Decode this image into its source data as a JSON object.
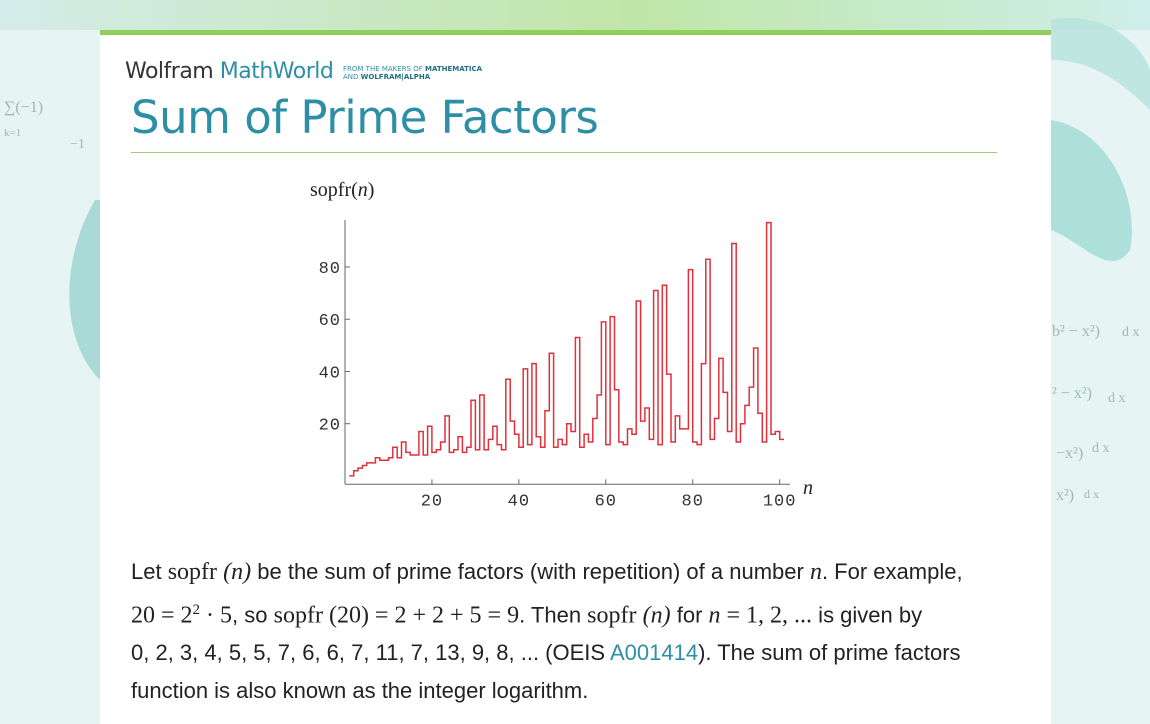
{
  "site": {
    "logo_wolfram": "Wolfram",
    "logo_mathworld": "MathWorld",
    "tagline_line1": "FROM THE MAKERS OF",
    "tagline_brand1": "MATHEMATICA",
    "tagline_line2": "AND",
    "tagline_brand2": "WOLFRAM|ALPHA",
    "accent_color": "#2d8fa6",
    "rule_color": "#9fce76"
  },
  "page": {
    "title": "Sum of Prime Factors"
  },
  "chart_data": {
    "type": "line",
    "step": true,
    "series_color": "#e0313b",
    "ylabel": "sopfr(n)",
    "xlabel": "n",
    "xlim": [
      0,
      101
    ],
    "ylim": [
      -5,
      98
    ],
    "xticks": [
      20,
      40,
      60,
      80,
      100
    ],
    "yticks": [
      20,
      40,
      60,
      80
    ],
    "x_start": 1,
    "values": [
      0,
      2,
      3,
      4,
      5,
      5,
      7,
      6,
      6,
      7,
      11,
      7,
      13,
      9,
      8,
      8,
      17,
      8,
      19,
      9,
      10,
      13,
      23,
      9,
      10,
      15,
      9,
      11,
      29,
      10,
      31,
      10,
      14,
      19,
      12,
      10,
      37,
      21,
      16,
      11,
      41,
      12,
      43,
      15,
      11,
      25,
      47,
      11,
      14,
      12,
      20,
      17,
      53,
      11,
      16,
      13,
      22,
      31,
      59,
      12,
      61,
      33,
      13,
      12,
      18,
      16,
      67,
      21,
      26,
      14,
      71,
      12,
      73,
      39,
      13,
      23,
      18,
      18,
      79,
      13,
      12,
      43,
      83,
      14,
      22,
      45,
      32,
      17,
      89,
      13,
      20,
      27,
      34,
      49,
      24,
      13,
      97,
      16,
      17,
      14
    ]
  },
  "body": {
    "p1_a": "Let ",
    "p1_m1": "sopfr",
    "p1_m1n": "(n)",
    "p1_b": " be the sum of prime factors (with repetition) of a number ",
    "p1_n": "n",
    "p1_c": ". For example,",
    "p2_m": "20 = 2",
    "p2_exp": "2",
    "p2_m2": " · 5",
    "p2_a": ", so ",
    "p2_m3": "sopfr (20) = 2 + 2 + 5 = 9",
    "p2_b": ". Then ",
    "p2_m4": "sopfr",
    "p2_m4n": "(n)",
    "p2_c": " for ",
    "p2_n": "n",
    "p2_m5": " = 1, 2, ...",
    "p2_d": " is given by",
    "p3_a": "0, 2, 3, 4, 5, 5, 7, 6, 6, 7, 11, 7, 13, 9, 8, ... (OEIS ",
    "p3_link": "A001414",
    "p3_b": "). The sum of prime factors",
    "p4": "function is also known as the integer logarithm."
  }
}
